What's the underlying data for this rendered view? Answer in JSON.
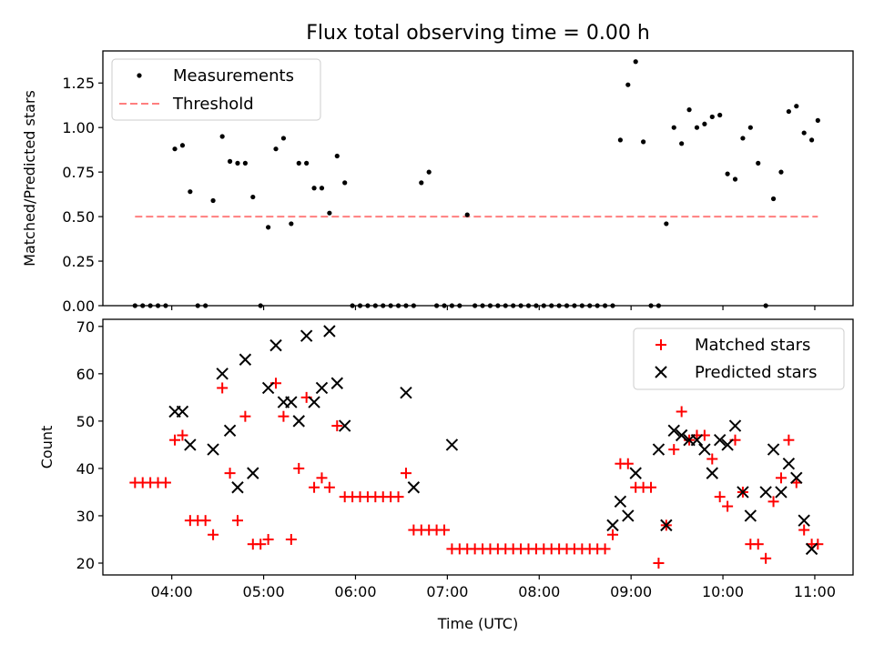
{
  "figure": {
    "title": "Flux total observing time = 0.00 h",
    "xlabel": "Time (UTC)"
  },
  "colors": {
    "measurements": "#000000",
    "threshold": "#ff7f7f",
    "matched": "#ff0000",
    "predicted": "#000000"
  },
  "chart_data": [
    {
      "type": "scatter",
      "ylabel": "Matched/Predicted stars",
      "xlim": [
        "03:15",
        "11:25"
      ],
      "ylim": [
        0,
        1.43
      ],
      "yticks": [
        0.0,
        0.25,
        0.5,
        0.75,
        1.0,
        1.25
      ],
      "ytick_labels": [
        "0.00",
        "0.25",
        "0.50",
        "0.75",
        "1.00",
        "1.25"
      ],
      "legend": {
        "position": "top-left",
        "entries": [
          "Measurements",
          "Threshold"
        ]
      },
      "series": [
        {
          "name": "Measurements",
          "marker": "dot",
          "x": [
            "03:36",
            "03:41",
            "03:46",
            "03:51",
            "03:56",
            "04:02",
            "04:07",
            "04:12",
            "04:17",
            "04:22",
            "04:27",
            "04:33",
            "04:38",
            "04:43",
            "04:48",
            "04:53",
            "04:58",
            "05:03",
            "05:08",
            "05:13",
            "05:18",
            "05:23",
            "05:28",
            "05:33",
            "05:38",
            "05:43",
            "05:48",
            "05:53",
            "05:58",
            "06:03",
            "06:08",
            "06:13",
            "06:18",
            "06:23",
            "06:28",
            "06:33",
            "06:38",
            "06:43",
            "06:48",
            "06:53",
            "06:58",
            "07:03",
            "07:08",
            "07:13",
            "07:18",
            "07:23",
            "07:28",
            "07:33",
            "07:38",
            "07:43",
            "07:48",
            "07:53",
            "07:58",
            "08:03",
            "08:08",
            "08:13",
            "08:18",
            "08:23",
            "08:28",
            "08:33",
            "08:38",
            "08:43",
            "08:48",
            "08:53",
            "08:58",
            "09:03",
            "09:08",
            "09:13",
            "09:18",
            "09:23",
            "09:28",
            "09:33",
            "09:38",
            "09:43",
            "09:48",
            "09:53",
            "09:58",
            "10:03",
            "10:08",
            "10:13",
            "10:18",
            "10:23",
            "10:28",
            "10:33",
            "10:38",
            "10:43",
            "10:48",
            "10:53",
            "10:58",
            "11:02"
          ],
          "y": [
            0,
            0,
            0,
            0,
            0,
            0.88,
            0.9,
            0.64,
            0,
            0,
            0.59,
            0.95,
            0.81,
            0.8,
            0.8,
            0.61,
            0,
            0.44,
            0.88,
            0.94,
            0.46,
            0.8,
            0.8,
            0.66,
            0.66,
            0.52,
            0.84,
            0.69,
            0,
            0,
            0,
            0,
            0,
            0,
            0,
            0,
            0,
            0.69,
            0.75,
            0,
            0,
            0,
            0,
            0.51,
            0,
            0,
            0,
            0,
            0,
            0,
            0,
            0,
            0,
            0,
            0,
            0,
            0,
            0,
            0,
            0,
            0,
            0,
            0,
            0.93,
            1.24,
            1.37,
            0.92,
            0,
            0,
            0.46,
            1.0,
            0.91,
            1.1,
            1.0,
            1.02,
            1.06,
            1.07,
            0.74,
            0.71,
            0.94,
            1.0,
            0.8,
            0,
            0.6,
            0.75,
            1.09,
            1.12,
            0.97,
            0.93,
            1.04
          ]
        },
        {
          "name": "Threshold",
          "style": "dashed",
          "x": [
            "03:36",
            "11:02"
          ],
          "y": [
            0.5,
            0.5
          ]
        }
      ]
    },
    {
      "type": "scatter",
      "ylabel": "Count",
      "xlim": [
        "03:15",
        "11:25"
      ],
      "ylim": [
        17.5,
        71.5
      ],
      "yticks": [
        20,
        30,
        40,
        50,
        60,
        70
      ],
      "ytick_labels": [
        "20",
        "30",
        "40",
        "50",
        "60",
        "70"
      ],
      "xticks": [
        "04:00",
        "05:00",
        "06:00",
        "07:00",
        "08:00",
        "09:00",
        "10:00",
        "11:00"
      ],
      "xtick_labels": [
        "04:00",
        "05:00",
        "06:00",
        "07:00",
        "08:00",
        "09:00",
        "10:00",
        "11:00"
      ],
      "legend": {
        "position": "top-right",
        "entries": [
          "Matched stars",
          "Predicted stars"
        ]
      },
      "series": [
        {
          "name": "Matched stars",
          "marker": "plus",
          "x": [
            "03:36",
            "03:41",
            "03:46",
            "03:51",
            "03:56",
            "04:02",
            "04:07",
            "04:12",
            "04:17",
            "04:22",
            "04:27",
            "04:33",
            "04:38",
            "04:43",
            "04:48",
            "04:53",
            "04:58",
            "05:03",
            "05:08",
            "05:13",
            "05:18",
            "05:23",
            "05:28",
            "05:33",
            "05:38",
            "05:43",
            "05:48",
            "05:53",
            "05:58",
            "06:03",
            "06:08",
            "06:13",
            "06:18",
            "06:23",
            "06:28",
            "06:33",
            "06:38",
            "06:43",
            "06:48",
            "06:53",
            "06:58",
            "07:03",
            "07:08",
            "07:13",
            "07:18",
            "07:23",
            "07:28",
            "07:33",
            "07:38",
            "07:43",
            "07:48",
            "07:53",
            "07:58",
            "08:03",
            "08:08",
            "08:13",
            "08:18",
            "08:23",
            "08:28",
            "08:33",
            "08:38",
            "08:43",
            "08:48",
            "08:53",
            "08:58",
            "09:03",
            "09:08",
            "09:13",
            "09:18",
            "09:23",
            "09:28",
            "09:33",
            "09:38",
            "09:43",
            "09:48",
            "09:53",
            "09:58",
            "10:03",
            "10:08",
            "10:13",
            "10:18",
            "10:23",
            "10:28",
            "10:33",
            "10:38",
            "10:43",
            "10:48",
            "10:53",
            "10:58",
            "11:02"
          ],
          "y": [
            37,
            37,
            37,
            37,
            37,
            46,
            47,
            29,
            29,
            29,
            26,
            57,
            39,
            29,
            51,
            24,
            24,
            25,
            58,
            51,
            25,
            40,
            55,
            36,
            38,
            36,
            49,
            34,
            34,
            34,
            34,
            34,
            34,
            34,
            34,
            39,
            27,
            27,
            27,
            27,
            27,
            23,
            23,
            23,
            23,
            23,
            23,
            23,
            23,
            23,
            23,
            23,
            23,
            23,
            23,
            23,
            23,
            23,
            23,
            23,
            23,
            23,
            26,
            41,
            41,
            36,
            36,
            36,
            20,
            28,
            44,
            52,
            46,
            47,
            47,
            42,
            34,
            32,
            46,
            35,
            24,
            24,
            21,
            33,
            38,
            46,
            37,
            27,
            24,
            24
          ]
        },
        {
          "name": "Predicted stars",
          "marker": "x",
          "x": [
            "04:02",
            "04:07",
            "04:12",
            "04:27",
            "04:33",
            "04:38",
            "04:43",
            "04:48",
            "04:53",
            "05:03",
            "05:08",
            "05:13",
            "05:18",
            "05:23",
            "05:28",
            "05:33",
            "05:38",
            "05:43",
            "05:48",
            "05:53",
            "06:33",
            "06:38",
            "07:03",
            "08:48",
            "08:53",
            "08:58",
            "09:03",
            "09:18",
            "09:23",
            "09:28",
            "09:33",
            "09:38",
            "09:43",
            "09:48",
            "09:53",
            "09:58",
            "10:03",
            "10:08",
            "10:13",
            "10:18",
            "10:28",
            "10:33",
            "10:38",
            "10:43",
            "10:48",
            "10:53",
            "10:58"
          ],
          "y": [
            52,
            52,
            45,
            44,
            60,
            48,
            36,
            63,
            39,
            57,
            66,
            54,
            54,
            50,
            68,
            54,
            57,
            69,
            58,
            49,
            56,
            36,
            45,
            28,
            33,
            30,
            39,
            44,
            28,
            48,
            47,
            46,
            46,
            44,
            39,
            46,
            45,
            49,
            35,
            30,
            35,
            44,
            35,
            41,
            38,
            29,
            23
          ]
        }
      ]
    }
  ]
}
